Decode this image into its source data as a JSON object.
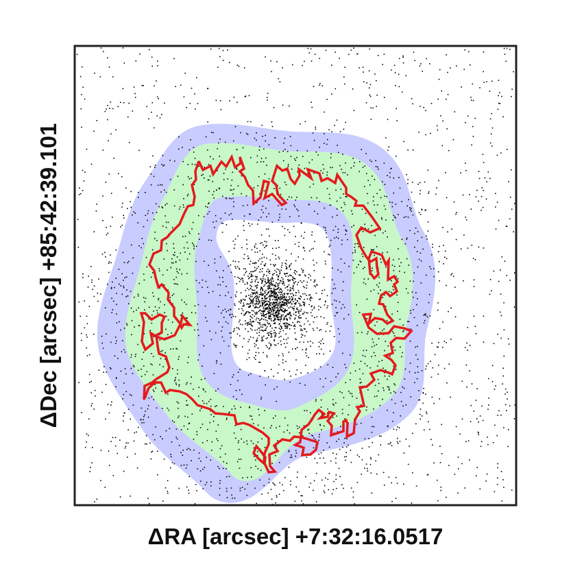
{
  "chart_data": {
    "type": "scatter",
    "title": "",
    "xlabel": "ΔRA [arcsec] +7:32:16.0517",
    "ylabel": "ΔDec [arcsec] +85:42:39.101",
    "show_tick_labels": false,
    "grid": false,
    "legend": "none",
    "regions": [
      {
        "role": "outer-annulus-band",
        "color": "#c9ccff"
      },
      {
        "role": "inner-annulus-band",
        "color": "#c8f7c8"
      },
      {
        "role": "inner-boundary-band",
        "color": "#c9ccff"
      },
      {
        "role": "core-region",
        "color": "#ffffff"
      },
      {
        "role": "contour-line",
        "color": "#e41a1c"
      }
    ],
    "points": {
      "description_source": "star field scatter",
      "color": "#000000",
      "background_density": 1400,
      "annulus_density": 900,
      "core_density": 1400
    }
  }
}
